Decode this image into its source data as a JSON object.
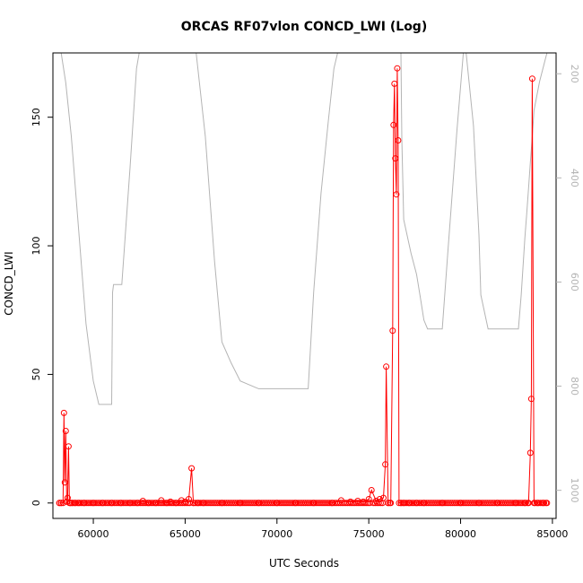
{
  "chart_data": {
    "type": "line",
    "title": "ORCAS RF07vlon CONCD_LWI (Log)",
    "xlabel": "UTC Seconds",
    "ylabel": "CONCD_LWI",
    "xlim": [
      57800,
      85200
    ],
    "ylim": [
      -6,
      175
    ],
    "x_ticks": [
      "60000",
      "65000",
      "70000",
      "75000",
      "80000",
      "85000"
    ],
    "y_ticks": [
      "0",
      "50",
      "100",
      "150"
    ],
    "y2_ticks": [
      "200",
      "400",
      "600",
      "800",
      "1000"
    ],
    "y2lim": [
      1054,
      160
    ],
    "y2_reversed": true,
    "grid": false,
    "colors": {
      "concd": "#ff0000",
      "secondary": "#b4b4b4"
    },
    "series": [
      {
        "axis": "left",
        "x": [
          58150,
          58250,
          58350,
          58400,
          58450,
          58500,
          58550,
          58600,
          58650,
          58700,
          58750,
          58850,
          59000,
          59200,
          59500,
          60000,
          60500,
          61000,
          61500,
          62000,
          62400,
          62700,
          63000,
          63400,
          63700,
          64000,
          64200,
          64500,
          64800,
          65000,
          65200,
          65350,
          65450,
          65700,
          66000,
          67000,
          68000,
          69000,
          70000,
          71000,
          72000,
          73000,
          73500,
          74000,
          74400,
          74700,
          75000,
          75150,
          75400,
          75600,
          75800,
          75900,
          75950,
          76050,
          76200,
          76300,
          76350,
          76400,
          76450,
          76500,
          76550,
          76600,
          76650,
          76750,
          76900,
          77200,
          77600,
          78000,
          79000,
          80000,
          81000,
          82000,
          83000,
          83500,
          83700,
          83800,
          83850,
          83900,
          84000,
          84200,
          84500,
          84700
        ],
        "values": [
          0,
          0,
          0,
          35,
          8,
          28,
          0.5,
          2,
          22,
          0,
          0,
          0,
          0,
          0,
          0,
          0,
          0,
          0,
          0,
          0,
          0,
          0.8,
          0,
          0,
          1,
          0,
          0.5,
          0,
          1,
          0.5,
          1.5,
          13.5,
          0,
          0,
          0,
          0,
          0,
          0,
          0,
          0,
          0,
          0,
          1,
          0.5,
          0.8,
          0.5,
          1.5,
          5,
          0.8,
          1.5,
          2,
          15,
          53,
          0,
          0,
          67,
          147,
          163,
          134,
          120,
          169,
          141,
          0,
          0,
          0,
          0,
          0,
          0,
          0,
          0,
          0,
          0,
          0,
          0,
          0,
          19.5,
          40.5,
          165,
          0,
          0,
          0,
          0
        ]
      },
      {
        "axis": "right",
        "x": [
          58100,
          58250,
          58500,
          58800,
          59200,
          59600,
          60000,
          60300,
          60700,
          61000,
          61050,
          61100,
          61500,
          61550,
          62000,
          62350,
          62500,
          63000,
          63500,
          64000,
          64500,
          65000,
          65600,
          66100,
          66600,
          67000,
          67500,
          68000,
          69000,
          70000,
          71000,
          71600,
          71700,
          72000,
          72400,
          72800,
          73100,
          73300,
          73500,
          74000,
          74500,
          75000,
          75500,
          76000,
          76500,
          76750,
          76800,
          76900,
          77300,
          77600,
          77800,
          78000,
          78200,
          78400,
          78600,
          78800,
          78900,
          79000,
          79300,
          79800,
          80150,
          80300,
          80700,
          81000,
          81100,
          81500,
          82000,
          82500,
          83000,
          83150,
          83300,
          83500,
          83600,
          83700,
          83800,
          83900,
          84000,
          84300,
          84700
        ],
        "values": [
          160,
          160,
          217,
          320,
          500,
          680,
          790,
          835,
          835,
          835,
          620,
          605,
          605,
          605,
          380,
          190,
          160,
          160,
          155,
          155,
          155,
          160,
          160,
          320,
          560,
          715,
          755,
          790,
          805,
          805,
          805,
          805,
          805,
          620,
          430,
          290,
          190,
          160,
          160,
          155,
          155,
          155,
          155,
          160,
          160,
          160,
          325,
          480,
          545,
          585,
          628,
          673,
          690,
          690,
          690,
          690,
          690,
          690,
          545,
          310,
          160,
          160,
          300,
          510,
          625,
          690,
          690,
          690,
          690,
          690,
          625,
          515,
          470,
          420,
          370,
          322,
          270,
          215,
          160
        ]
      }
    ]
  }
}
